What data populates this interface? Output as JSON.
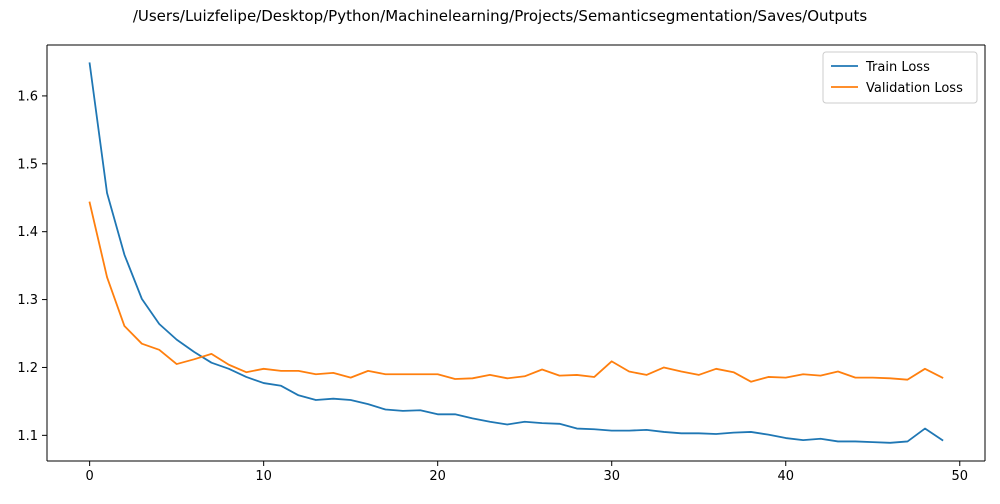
{
  "chart_data": {
    "type": "line",
    "title": "/Users/Luizfelipe/Desktop/Python/Machinelearning/Projects/Semanticsegmentation/Saves/Outputs",
    "xlabel": "",
    "ylabel": "",
    "xlim": [
      -2.45,
      51.45
    ],
    "ylim": [
      1.0622,
      1.675
    ],
    "xticks": [
      0,
      10,
      20,
      30,
      40,
      50
    ],
    "yticks": [
      1.1,
      1.2,
      1.3,
      1.4,
      1.5,
      1.6
    ],
    "grid": false,
    "legend_position": "top-right",
    "x": [
      0,
      1,
      2,
      3,
      4,
      5,
      6,
      7,
      8,
      9,
      10,
      11,
      12,
      13,
      14,
      15,
      16,
      17,
      18,
      19,
      20,
      21,
      22,
      23,
      24,
      25,
      26,
      27,
      28,
      29,
      30,
      31,
      32,
      33,
      34,
      35,
      36,
      37,
      38,
      39,
      40,
      41,
      42,
      43,
      44,
      45,
      46,
      47,
      48,
      49
    ],
    "series": [
      {
        "name": "Train Loss",
        "color": "#1f77b4",
        "values": [
          1.648,
          1.457,
          1.366,
          1.301,
          1.264,
          1.241,
          1.223,
          1.207,
          1.198,
          1.186,
          1.177,
          1.173,
          1.159,
          1.152,
          1.154,
          1.152,
          1.146,
          1.138,
          1.136,
          1.137,
          1.131,
          1.131,
          1.125,
          1.12,
          1.116,
          1.12,
          1.118,
          1.117,
          1.11,
          1.109,
          1.107,
          1.107,
          1.108,
          1.105,
          1.103,
          1.103,
          1.102,
          1.104,
          1.105,
          1.101,
          1.096,
          1.093,
          1.095,
          1.091,
          1.091,
          1.09,
          1.089,
          1.091,
          1.11,
          1.093
        ]
      },
      {
        "name": "Validation Loss",
        "color": "#ff7f0e",
        "values": [
          1.443,
          1.333,
          1.261,
          1.235,
          1.226,
          1.205,
          1.212,
          1.22,
          1.204,
          1.193,
          1.198,
          1.195,
          1.195,
          1.19,
          1.192,
          1.185,
          1.195,
          1.19,
          1.19,
          1.19,
          1.19,
          1.183,
          1.184,
          1.189,
          1.184,
          1.187,
          1.197,
          1.188,
          1.189,
          1.186,
          1.209,
          1.194,
          1.189,
          1.2,
          1.194,
          1.189,
          1.198,
          1.193,
          1.179,
          1.186,
          1.185,
          1.19,
          1.188,
          1.194,
          1.185,
          1.185,
          1.184,
          1.182,
          1.198,
          1.185
        ]
      }
    ]
  }
}
